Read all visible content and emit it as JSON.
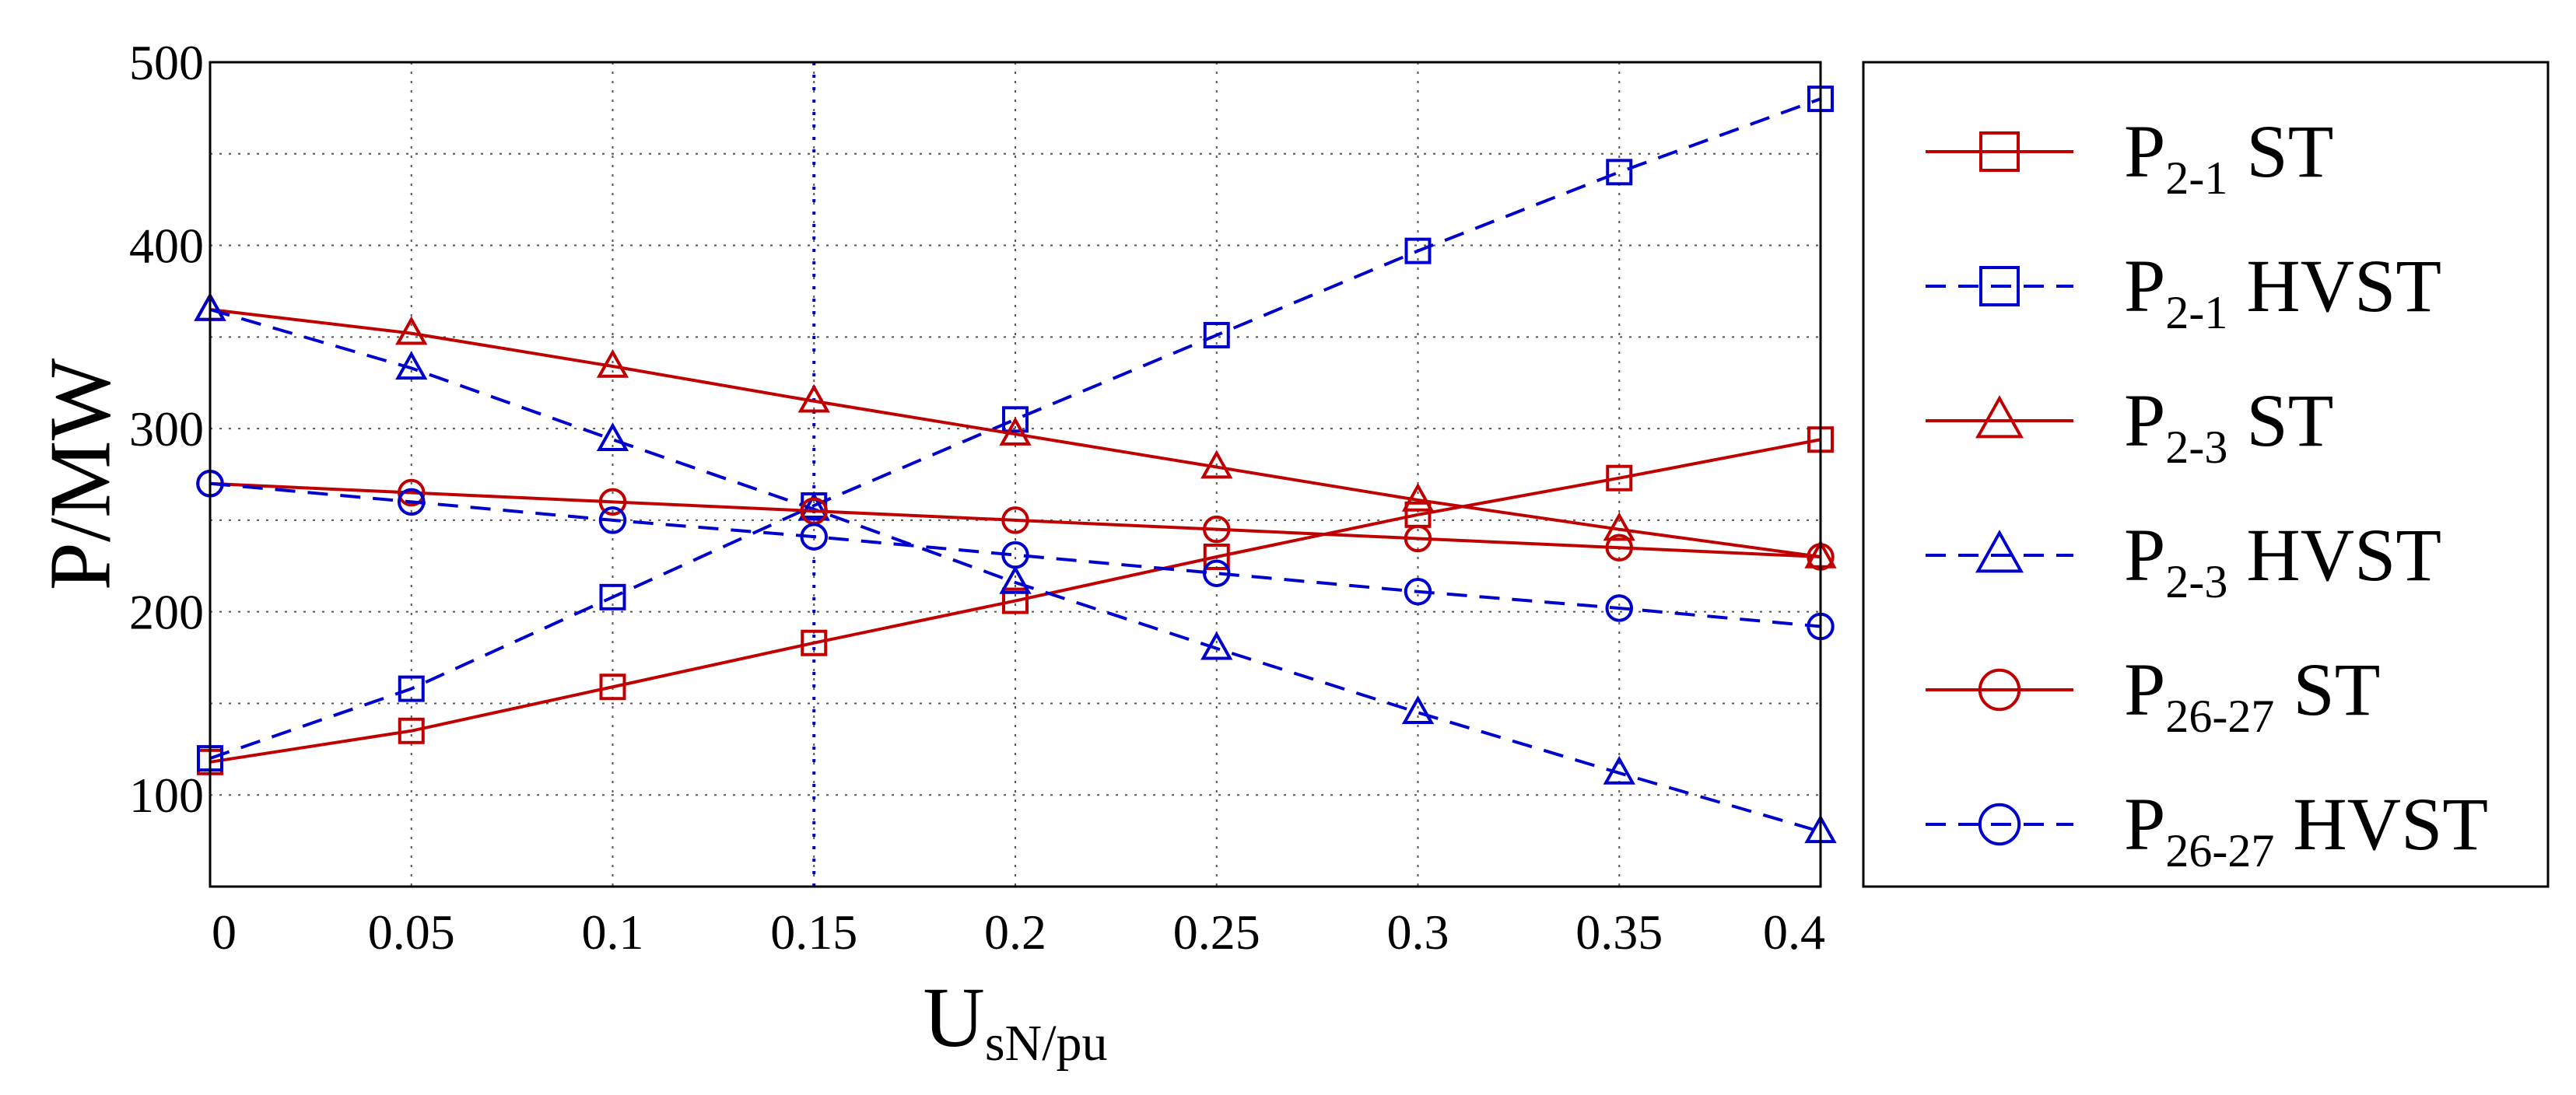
{
  "chart_data": {
    "type": "line",
    "title": "",
    "x": [
      0,
      0.05,
      0.1,
      0.15,
      0.2,
      0.25,
      0.3,
      0.35,
      0.4
    ],
    "x_tick_labels": [
      "0",
      "0.05",
      "0.1",
      "0.15",
      "0.2",
      "0.25",
      "0.3",
      "0.35",
      "0.4"
    ],
    "y_tick_values": [
      100,
      200,
      300,
      400,
      500
    ],
    "y_tick_labels": [
      "100",
      "200",
      "300",
      "400",
      "500"
    ],
    "xlim": [
      0,
      0.4
    ],
    "ylim": [
      50,
      500
    ],
    "xlabel": {
      "main": "U",
      "sub": "sN/pu"
    },
    "ylabel": "P/MW",
    "grid": true,
    "reference_line_x": 0.15,
    "legend_position": "right-outside",
    "series": [
      {
        "name": "P2-1 ST",
        "label_main": "P",
        "label_sub": "2-1",
        "label_suffix": " ST",
        "color": "#c00000",
        "dash": "solid",
        "marker": "square",
        "values": [
          118,
          135,
          159,
          183,
          206,
          230,
          253,
          273,
          294
        ]
      },
      {
        "name": "P2-1 HVST",
        "label_main": "P",
        "label_sub": "2-1",
        "label_suffix": " HVST",
        "color": "#0000cc",
        "dash": "dashed",
        "marker": "square",
        "values": [
          120,
          158,
          208,
          258,
          305,
          351,
          397,
          440,
          480
        ]
      },
      {
        "name": "P2-3 ST",
        "label_main": "P",
        "label_sub": "2-3",
        "label_suffix": " ST",
        "color": "#c00000",
        "dash": "solid",
        "marker": "triangle",
        "values": [
          365,
          352,
          334,
          315,
          297,
          279,
          261,
          245,
          230
        ]
      },
      {
        "name": "P2-3 HVST",
        "label_main": "P",
        "label_sub": "2-3",
        "label_suffix": " HVST",
        "color": "#0000cc",
        "dash": "dashed",
        "marker": "triangle",
        "values": [
          365,
          333,
          294,
          256,
          216,
          180,
          145,
          112,
          80
        ]
      },
      {
        "name": "P26-27 ST",
        "label_main": "P",
        "label_sub": "26-27",
        "label_suffix": " ST",
        "color": "#c00000",
        "dash": "solid",
        "marker": "circle",
        "values": [
          270,
          265,
          260,
          255,
          250,
          245,
          240,
          235,
          230
        ]
      },
      {
        "name": "P26-27 HVST",
        "label_main": "P",
        "label_sub": "26-27",
        "label_suffix": " HVST",
        "color": "#0000cc",
        "dash": "dashed",
        "marker": "circle",
        "values": [
          270,
          260,
          250,
          241,
          231,
          221,
          211,
          202,
          192
        ]
      }
    ]
  }
}
